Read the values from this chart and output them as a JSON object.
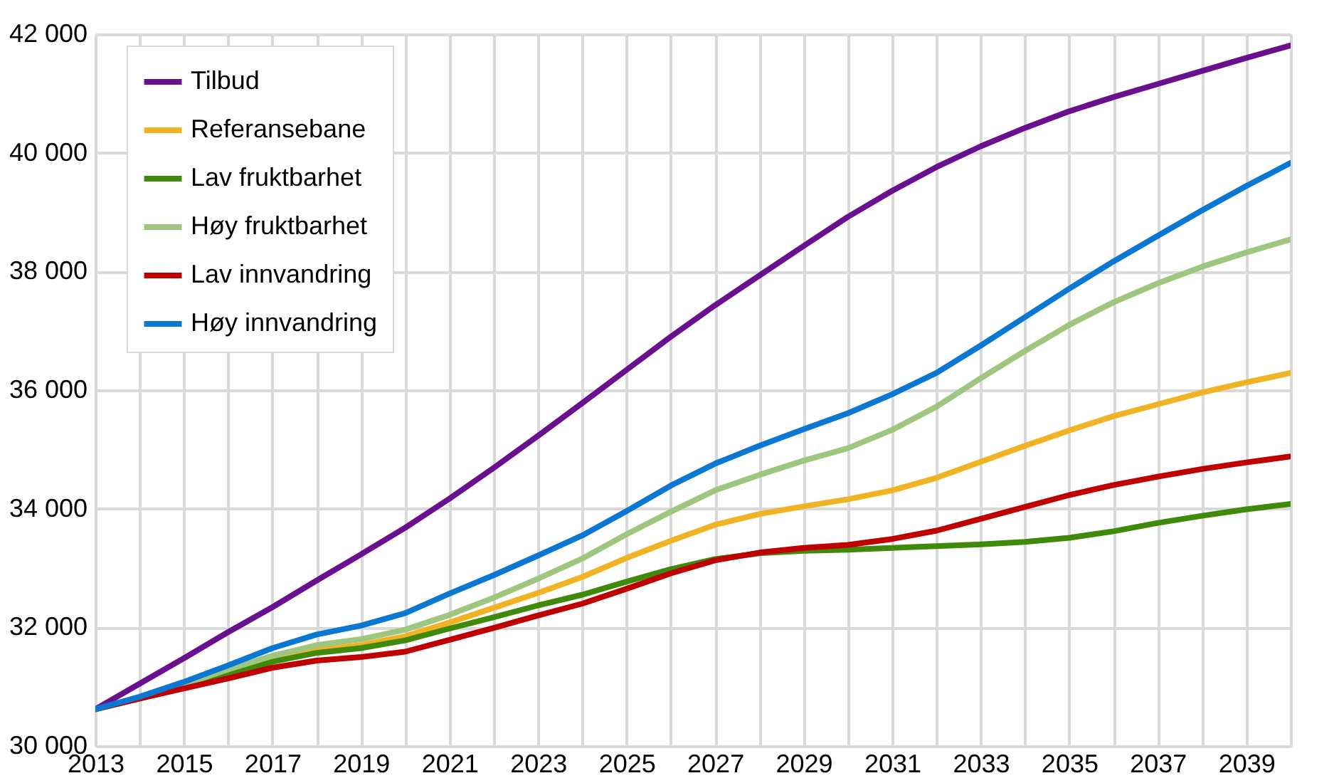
{
  "chart_data": {
    "type": "line",
    "x": [
      2013,
      2014,
      2015,
      2016,
      2017,
      2018,
      2019,
      2020,
      2021,
      2022,
      2023,
      2024,
      2025,
      2026,
      2027,
      2028,
      2029,
      2030,
      2031,
      2032,
      2033,
      2034,
      2035,
      2036,
      2037,
      2038,
      2039,
      2040
    ],
    "xlim": [
      2013,
      2040
    ],
    "xticks": [
      2013,
      {
        "value": 2014,
        "label": null
      },
      2015,
      {
        "value": 2016,
        "label": null
      },
      2017,
      {
        "value": 2018,
        "label": null
      },
      2019,
      {
        "value": 2020,
        "label": null
      },
      2021,
      {
        "value": 2022,
        "label": null
      },
      2023,
      {
        "value": 2024,
        "label": null
      },
      2025,
      {
        "value": 2026,
        "label": null
      },
      2027,
      {
        "value": 2028,
        "label": null
      },
      2029,
      {
        "value": 2030,
        "label": null
      },
      2031,
      {
        "value": 2032,
        "label": null
      },
      2033,
      {
        "value": 2034,
        "label": null
      },
      2035,
      {
        "value": 2036,
        "label": null
      },
      2037,
      {
        "value": 2038,
        "label": null
      },
      2039,
      {
        "value": 2040,
        "label": null
      }
    ],
    "ylim": [
      30000,
      42000
    ],
    "yticks": [
      {
        "value": 30000,
        "label": "30 000"
      },
      {
        "value": 32000,
        "label": "32 000"
      },
      {
        "value": 34000,
        "label": "34 000"
      },
      {
        "value": 36000,
        "label": "36 000"
      },
      {
        "value": 38000,
        "label": "38 000"
      },
      {
        "value": 40000,
        "label": "40 000"
      },
      {
        "value": 42000,
        "label": "42 000"
      }
    ],
    "grid": true,
    "legend": "top left",
    "marker": "none",
    "line_style": "solid",
    "series": [
      {
        "name": "Tilbud",
        "color": "#6a0f8e",
        "values": [
          30620,
          31050,
          31480,
          31920,
          32340,
          32790,
          33230,
          33680,
          34170,
          34690,
          35230,
          35780,
          36340,
          36900,
          37430,
          37930,
          38430,
          38920,
          39360,
          39760,
          40110,
          40420,
          40700,
          40940,
          41160,
          41380,
          41600,
          41810
        ]
      },
      {
        "name": "Referansebane",
        "color": "#f0b323",
        "values": [
          null,
          null,
          null,
          31230,
          31460,
          31610,
          31700,
          31850,
          32080,
          32330,
          32580,
          32850,
          33170,
          33460,
          33730,
          33910,
          34040,
          34160,
          34310,
          34520,
          34790,
          35060,
          35320,
          35560,
          35760,
          35960,
          36130,
          36290
        ]
      },
      {
        "name": "Lav fruktbarhet",
        "color": "#3f8a0a",
        "values": [
          30620,
          30800,
          30990,
          31200,
          31420,
          31570,
          31650,
          31780,
          31980,
          32170,
          32370,
          32550,
          32770,
          32980,
          33150,
          33250,
          33290,
          33310,
          33340,
          33370,
          33400,
          33440,
          33510,
          33620,
          33760,
          33880,
          33990,
          34080
        ]
      },
      {
        "name": "Høy fruktbarhet",
        "color": "#9fc67e",
        "values": [
          30620,
          30820,
          31040,
          31290,
          31520,
          31700,
          31800,
          31960,
          32210,
          32500,
          32820,
          33160,
          33570,
          33950,
          34310,
          34570,
          34810,
          35020,
          35330,
          35720,
          36200,
          36660,
          37100,
          37480,
          37800,
          38080,
          38320,
          38540
        ]
      },
      {
        "name": "Lav innvandring",
        "color": "#c00000",
        "values": [
          30620,
          30800,
          30970,
          31140,
          31320,
          31440,
          31500,
          31590,
          31790,
          31990,
          32200,
          32400,
          32650,
          32910,
          33130,
          33260,
          33340,
          33390,
          33490,
          33630,
          33830,
          34030,
          34230,
          34400,
          34540,
          34670,
          34780,
          34880
        ]
      },
      {
        "name": "Høy innvandring",
        "color": "#0a78d2",
        "values": [
          30620,
          30830,
          31080,
          31360,
          31650,
          31880,
          32030,
          32240,
          32570,
          32880,
          33210,
          33550,
          33960,
          34390,
          34760,
          35060,
          35340,
          35610,
          35930,
          36290,
          36750,
          37230,
          37710,
          38170,
          38600,
          39030,
          39440,
          39830
        ]
      }
    ]
  }
}
